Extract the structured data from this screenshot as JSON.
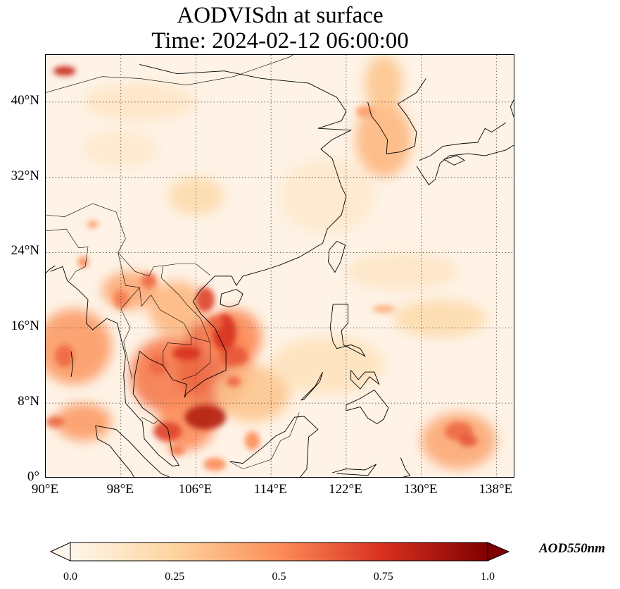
{
  "title": {
    "line1": "AODVISdn at surface",
    "line2": "Time: 2024-02-12 06:00:00"
  },
  "axes": {
    "lon_ticks": [
      "90°E",
      "98°E",
      "106°E",
      "114°E",
      "122°E",
      "130°E",
      "138°E"
    ],
    "lat_ticks": [
      "40°N",
      "32°N",
      "24°N",
      "16°N",
      "8°N",
      "0°"
    ],
    "lon_values": [
      90,
      98,
      106,
      114,
      122,
      130,
      138
    ],
    "lat_values": [
      40,
      32,
      24,
      16,
      8,
      0
    ],
    "lon_range": [
      90,
      140
    ],
    "lat_range": [
      0,
      45
    ],
    "grid": "dotted"
  },
  "colorbar": {
    "title": "AOD550nm",
    "tick_labels": [
      "0.0",
      "0.25",
      "0.5",
      "0.75",
      "1.0"
    ],
    "tick_values": [
      0.0,
      0.25,
      0.5,
      0.75,
      1.0
    ],
    "range": [
      0.0,
      1.0
    ],
    "colormap": "OrRd",
    "colors": [
      "#fff7ec",
      "#fdd49e",
      "#fc8d59",
      "#d7301f",
      "#7f0000"
    ],
    "extend": "both"
  }
}
